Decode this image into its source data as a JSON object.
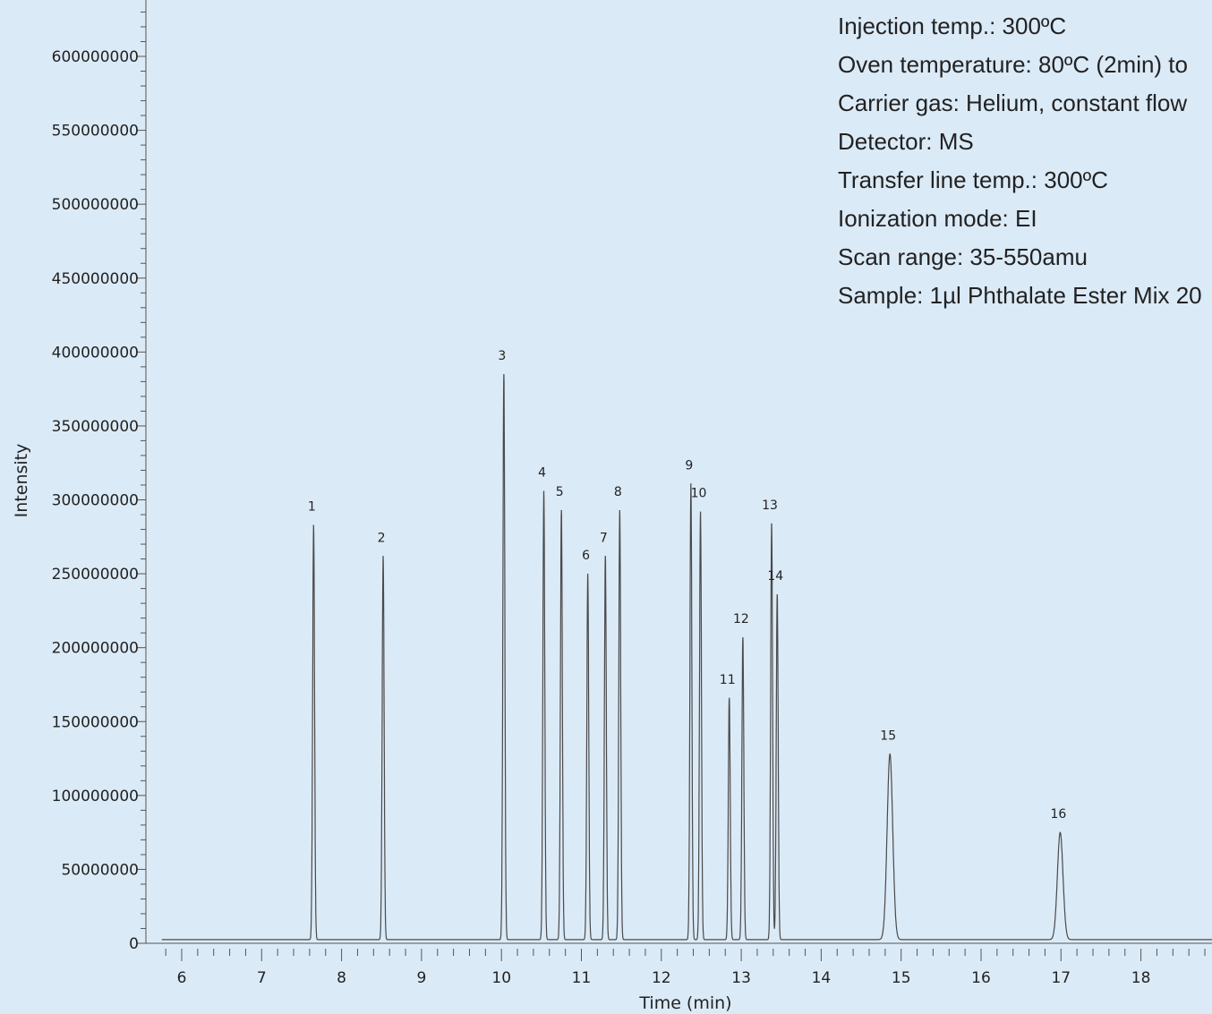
{
  "chart_data": {
    "type": "line",
    "title": "",
    "xlabel": "Time (min)",
    "ylabel": "Intensity",
    "xlim": [
      5.8,
      19.0
    ],
    "ylim": [
      0,
      630000000
    ],
    "x_ticks": [
      6,
      7,
      8,
      9,
      10,
      11,
      12,
      13,
      14,
      15,
      16,
      17,
      18
    ],
    "y_ticks": [
      0,
      50000000,
      100000000,
      150000000,
      200000000,
      250000000,
      300000000,
      350000000,
      400000000,
      450000000,
      500000000,
      550000000,
      600000000
    ],
    "y_tick_labels": [
      "0",
      "50000000",
      "100000000",
      "150000000",
      "200000000",
      "250000000",
      "300000000",
      "350000000",
      "400000000",
      "450000000",
      "500000000",
      "550000000",
      "600000000"
    ],
    "grid": false,
    "series": [
      {
        "peaks": [
          {
            "label": "1",
            "x": 7.65,
            "y": 283000000
          },
          {
            "label": "2",
            "x": 8.52,
            "y": 262000000
          },
          {
            "label": "3",
            "x": 10.03,
            "y": 385000000
          },
          {
            "label": "4",
            "x": 10.53,
            "y": 306000000
          },
          {
            "label": "5",
            "x": 10.75,
            "y": 293000000
          },
          {
            "label": "6",
            "x": 11.08,
            "y": 250000000
          },
          {
            "label": "7",
            "x": 11.3,
            "y": 262000000
          },
          {
            "label": "8",
            "x": 11.48,
            "y": 293000000
          },
          {
            "label": "9",
            "x": 12.37,
            "y": 311000000
          },
          {
            "label": "10",
            "x": 12.49,
            "y": 292000000
          },
          {
            "label": "11",
            "x": 12.85,
            "y": 166000000
          },
          {
            "label": "12",
            "x": 13.02,
            "y": 207000000
          },
          {
            "label": "13",
            "x": 13.38,
            "y": 284000000
          },
          {
            "label": "14",
            "x": 13.45,
            "y": 236000000
          },
          {
            "label": "15",
            "x": 14.86,
            "y": 128000000
          },
          {
            "label": "16",
            "x": 16.99,
            "y": 75000000
          }
        ]
      }
    ]
  },
  "conditions": [
    "Injection temp.: 300ºC",
    "Oven temperature: 80ºC (2min) to",
    "Carrier gas: Helium, constant flow",
    "Detector: MS",
    "Transfer line temp.: 300ºC",
    "Ionization mode: EI",
    "Scan range: 35-550amu",
    "Sample: 1µl Phthalate Ester Mix 20"
  ],
  "colors": {
    "background": "#dbeaf7",
    "trace": "#4a4a4a",
    "axis": "#555555",
    "text": "#222222"
  }
}
